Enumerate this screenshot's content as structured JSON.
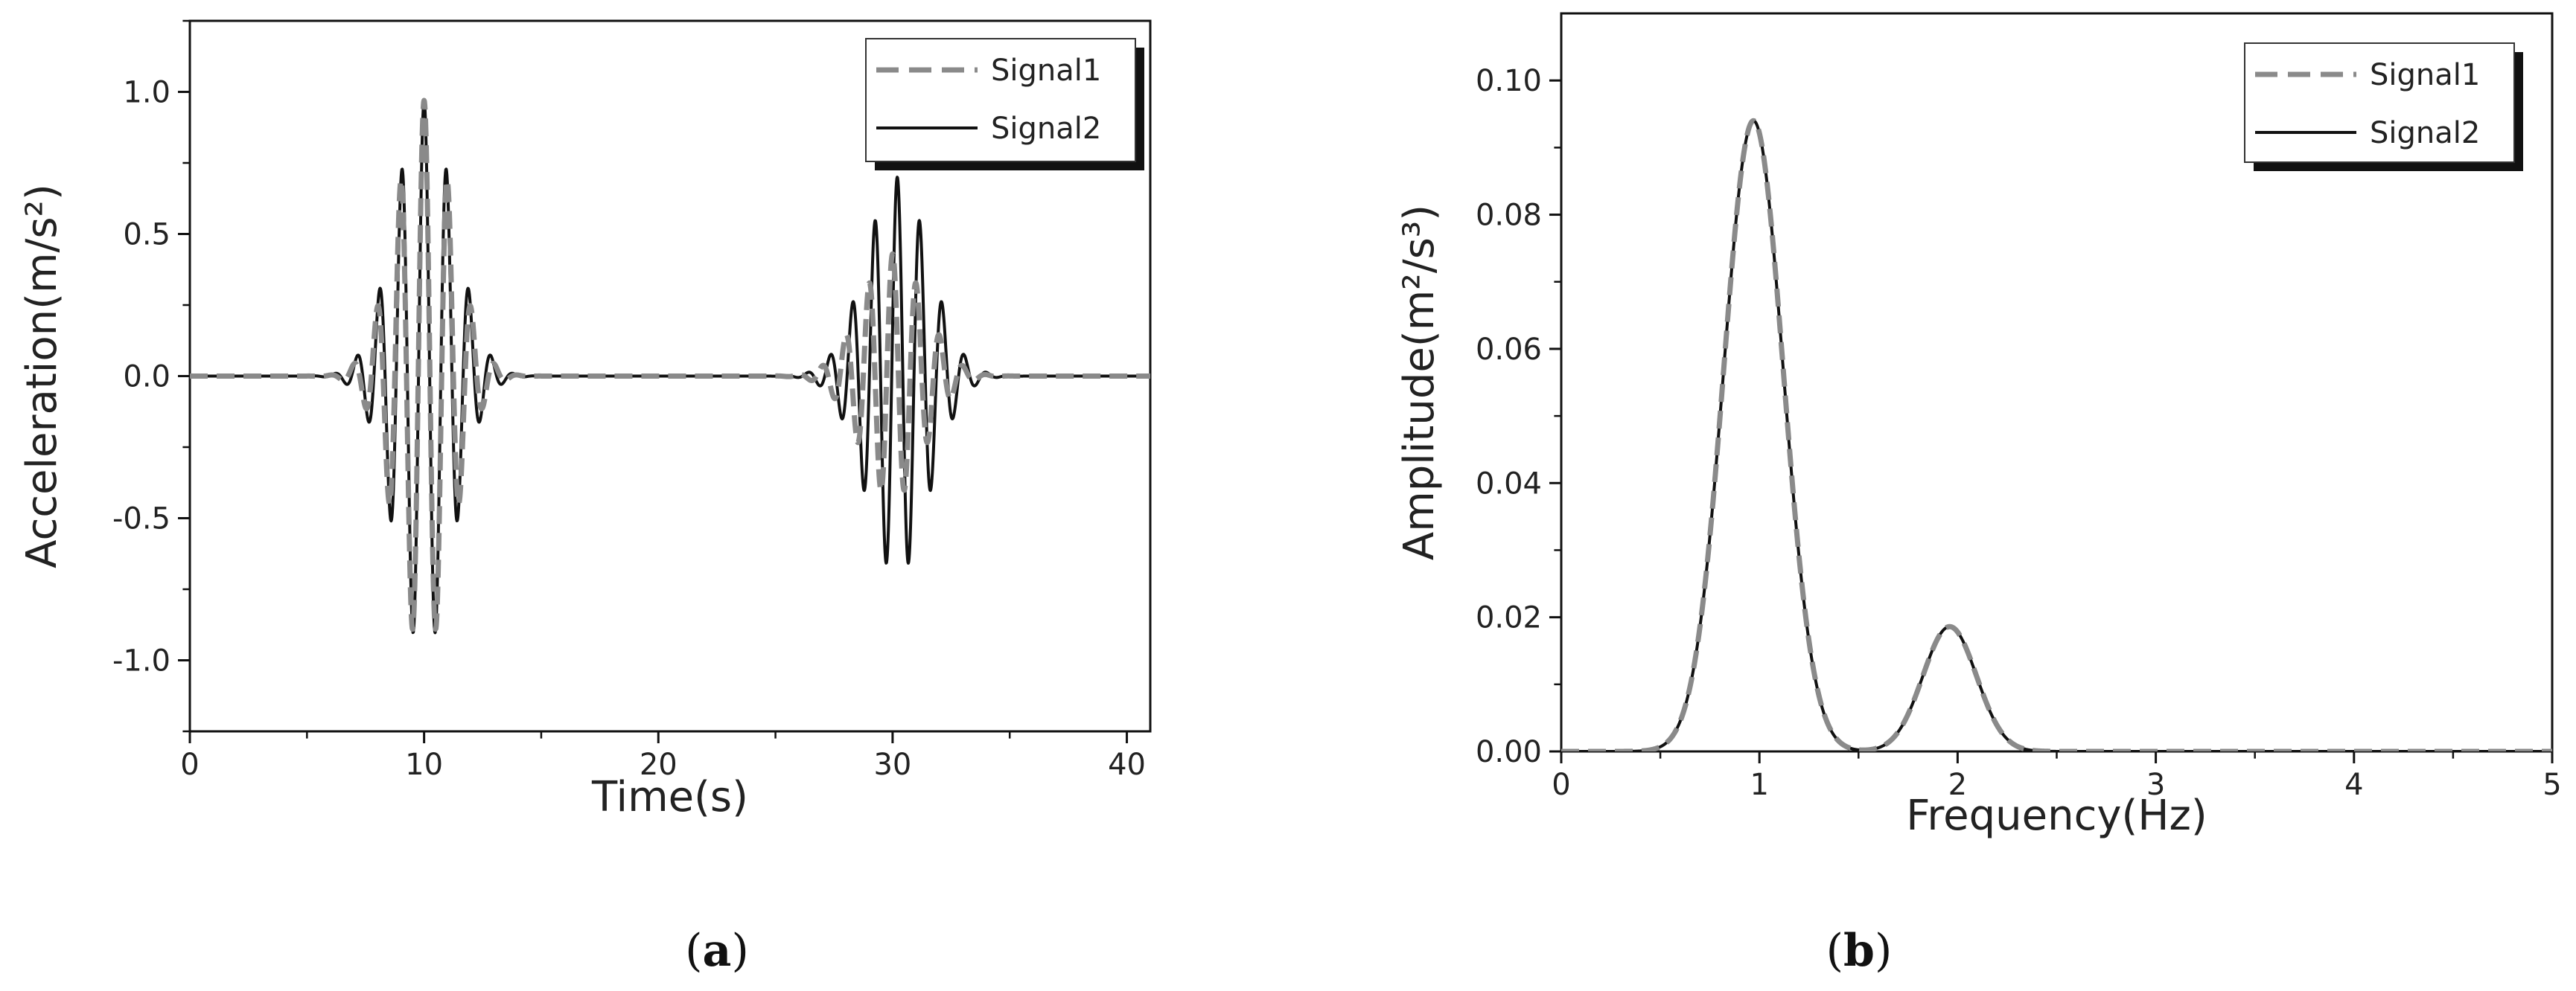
{
  "panels": [
    {
      "label_open": "(",
      "label_letter": "a",
      "label_close": ")"
    },
    {
      "label_open": "(",
      "label_letter": "b",
      "label_close": ")"
    }
  ],
  "chart_data": [
    {
      "type": "line",
      "title": "",
      "xlabel": "Time(s)",
      "ylabel": "Acceleration(m/s²)",
      "xlim": [
        0,
        41
      ],
      "ylim": [
        -1.25,
        1.25
      ],
      "xticks": [
        0,
        10,
        20,
        30,
        40
      ],
      "xtick_labels": [
        "0",
        "10",
        "20",
        "30",
        "40"
      ],
      "yticks": [
        -1.0,
        -0.5,
        0.0,
        0.5,
        1.0
      ],
      "ytick_labels": [
        "-1.0",
        "-0.5",
        "0.0",
        "0.5",
        "1.0"
      ],
      "grid": false,
      "legend_position": "top-right",
      "series": [
        {
          "name": "Signal1",
          "style": "dashed",
          "color": "#8a8a8a",
          "bursts": [
            {
              "center": 10,
              "amplitude": 0.97,
              "frequency_hz": 1,
              "width": 1.2
            },
            {
              "center": 30,
              "amplitude": 0.43,
              "frequency_hz": 1,
              "width": 1.35
            }
          ]
        },
        {
          "name": "Signal2",
          "style": "solid",
          "color": "#111111",
          "bursts": [
            {
              "center": 10,
              "amplitude": 0.97,
              "frequency_hz": 1.05,
              "width": 1.25
            },
            {
              "center": 30.2,
              "amplitude": 0.7,
              "frequency_hz": 1.05,
              "width": 1.35
            }
          ]
        }
      ]
    },
    {
      "type": "line",
      "title": "",
      "xlabel": "Frequency(Hz)",
      "ylabel": "Amplitude(m²/s³)",
      "xlim": [
        0,
        5
      ],
      "ylim": [
        0,
        0.11
      ],
      "xticks": [
        0,
        1,
        2,
        3,
        4,
        5
      ],
      "xtick_labels": [
        "0",
        "1",
        "2",
        "3",
        "4",
        "5"
      ],
      "yticks": [
        0,
        0.02,
        0.04,
        0.06,
        0.08,
        0.1
      ],
      "ytick_labels": [
        "0.00",
        "0.02",
        "0.04",
        "0.06",
        "0.08",
        "0.10"
      ],
      "grid": false,
      "legend_position": "top-right",
      "series": [
        {
          "name": "Signal1",
          "style": "dashed",
          "color": "#8a8a8a",
          "peaks": [
            {
              "center": 0.97,
              "amplitude": 0.094,
              "sigma": 0.15
            },
            {
              "center": 1.96,
              "amplitude": 0.0186,
              "sigma": 0.135
            }
          ]
        },
        {
          "name": "Signal2",
          "style": "solid",
          "color": "#111111",
          "peaks": [
            {
              "center": 0.97,
              "amplitude": 0.094,
              "sigma": 0.15
            },
            {
              "center": 1.96,
              "amplitude": 0.0186,
              "sigma": 0.135
            }
          ]
        }
      ]
    }
  ]
}
